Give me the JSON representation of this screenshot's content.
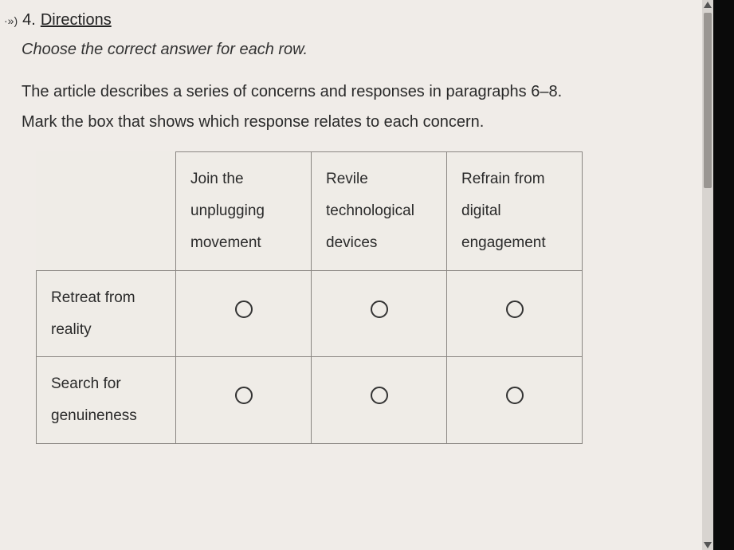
{
  "question": {
    "audio_glyph": "·»)",
    "number": "4.",
    "directions_label": "Directions",
    "instruction": "Choose the correct answer for each row.",
    "body_line1": "The article describes a series of concerns and responses in paragraphs 6–8.",
    "body_line2": "Mark the box that shows which response relates to each concern."
  },
  "matrix": {
    "columns": [
      "Join the unplugging movement",
      "Revile technological devices",
      "Refrain from digital engagement"
    ],
    "rows": [
      {
        "label": "Retreat from reality"
      },
      {
        "label": "Search for genuineness"
      }
    ]
  },
  "style": {
    "page_bg": "#f0ece8",
    "border_color": "#8a8682",
    "text_color": "#2a2a2a",
    "radio_border": "#333333",
    "font_size_body": 20,
    "font_size_table": 19
  }
}
